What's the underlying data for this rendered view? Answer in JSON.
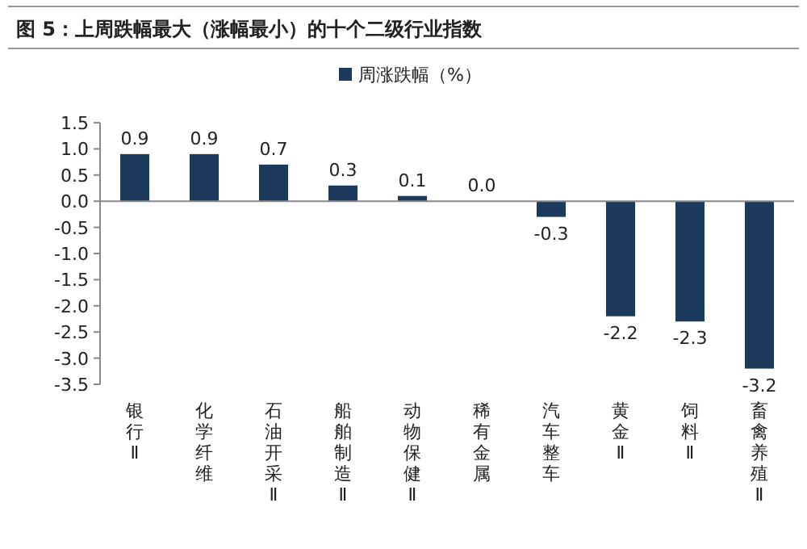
{
  "chart_data": {
    "type": "bar",
    "title": "图 5：上周跌幅最大（涨幅最小）的十个二级行业指数",
    "categories": [
      "银行Ⅱ",
      "化学纤维",
      "石油开采Ⅱ",
      "船舶制造Ⅱ",
      "动物保健Ⅱ",
      "稀有金属",
      "汽车整车",
      "黄金Ⅱ",
      "饲料Ⅱ",
      "畜禽养殖Ⅱ"
    ],
    "series": [
      {
        "name": "周涨跌幅（%）",
        "color": "#1b3a5c",
        "values": [
          0.9,
          0.9,
          0.7,
          0.3,
          0.1,
          0.0,
          -0.3,
          -2.2,
          -2.3,
          -3.2
        ],
        "value_labels": [
          "0.9",
          "0.9",
          "0.7",
          "0.3",
          "0.1",
          "0.0",
          "-0.3",
          "-2.2",
          "-2.3",
          "-3.2"
        ]
      }
    ],
    "legend": "top",
    "ylim": [
      -3.5,
      1.5
    ],
    "yticks": [
      {
        "value": 1.5,
        "label": "1.5"
      },
      {
        "value": 1,
        "label": "1.0"
      },
      {
        "value": 0.5,
        "label": "0.5"
      },
      {
        "value": 0,
        "label": "0.0"
      },
      {
        "value": -0.5,
        "label": "-0.5"
      },
      {
        "value": -1,
        "label": "-1.0"
      },
      {
        "value": -1.5,
        "label": "-1.5"
      },
      {
        "value": -2,
        "label": "-2.0"
      },
      {
        "value": -2.5,
        "label": "-2.5"
      },
      {
        "value": -3,
        "label": "-3.0"
      },
      {
        "value": -3.5,
        "label": "-3.5"
      }
    ]
  }
}
